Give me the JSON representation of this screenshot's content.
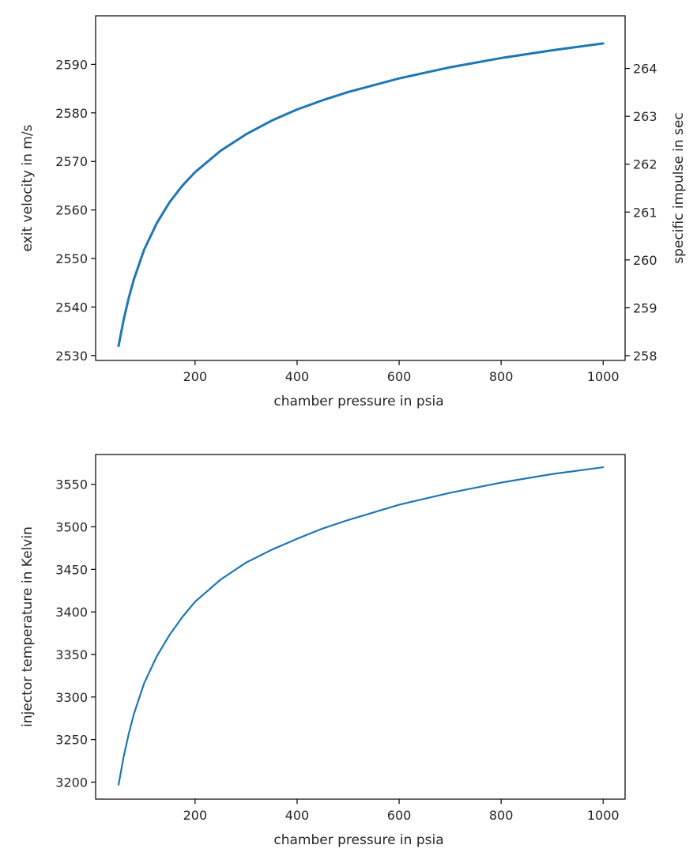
{
  "chart_data": [
    {
      "type": "line",
      "xlabel": "chamber pressure in psia",
      "ylabel": "exit velocity in m/s",
      "ylabel_right": "specific impulse in sec",
      "xlim": [
        5,
        1043
      ],
      "ylim": [
        2529,
        2600
      ],
      "ylim_right": [
        257.9,
        265.1
      ],
      "xticks": [
        200,
        400,
        600,
        800,
        1000
      ],
      "yticks": [
        2530,
        2540,
        2550,
        2560,
        2570,
        2580,
        2590
      ],
      "yticks_right": [
        258,
        259,
        260,
        261,
        262,
        263,
        264
      ],
      "grid": false,
      "color": "#1f77b4",
      "series": [
        {
          "x": [
            50,
            60,
            70,
            80,
            100,
            125,
            150,
            175,
            200,
            250,
            300,
            350,
            400,
            450,
            500,
            600,
            700,
            800,
            900,
            1000
          ],
          "y": [
            2532,
            2537.4,
            2541.9,
            2545.7,
            2551.8,
            2557.3,
            2561.6,
            2565.0,
            2567.8,
            2572.2,
            2575.6,
            2578.4,
            2580.7,
            2582.6,
            2584.3,
            2587.1,
            2589.4,
            2591.3,
            2592.9,
            2594.3
          ]
        }
      ]
    },
    {
      "type": "line",
      "xlabel": "chamber pressure in psia",
      "ylabel": "injector temperature in Kelvin",
      "xlim": [
        5,
        1043
      ],
      "ylim": [
        3180,
        3585
      ],
      "xticks": [
        200,
        400,
        600,
        800,
        1000
      ],
      "yticks": [
        3200,
        3250,
        3300,
        3350,
        3400,
        3450,
        3500,
        3550
      ],
      "grid": false,
      "color": "#1f77b4",
      "series": [
        {
          "x": [
            50,
            60,
            70,
            80,
            100,
            125,
            150,
            175,
            200,
            250,
            300,
            350,
            400,
            450,
            500,
            600,
            700,
            800,
            900,
            1000
          ],
          "y": [
            3197,
            3230,
            3257,
            3280,
            3316,
            3348,
            3373,
            3394,
            3412,
            3438,
            3458,
            3473,
            3486,
            3498,
            3508,
            3526,
            3540,
            3552,
            3562,
            3570
          ]
        }
      ]
    }
  ]
}
